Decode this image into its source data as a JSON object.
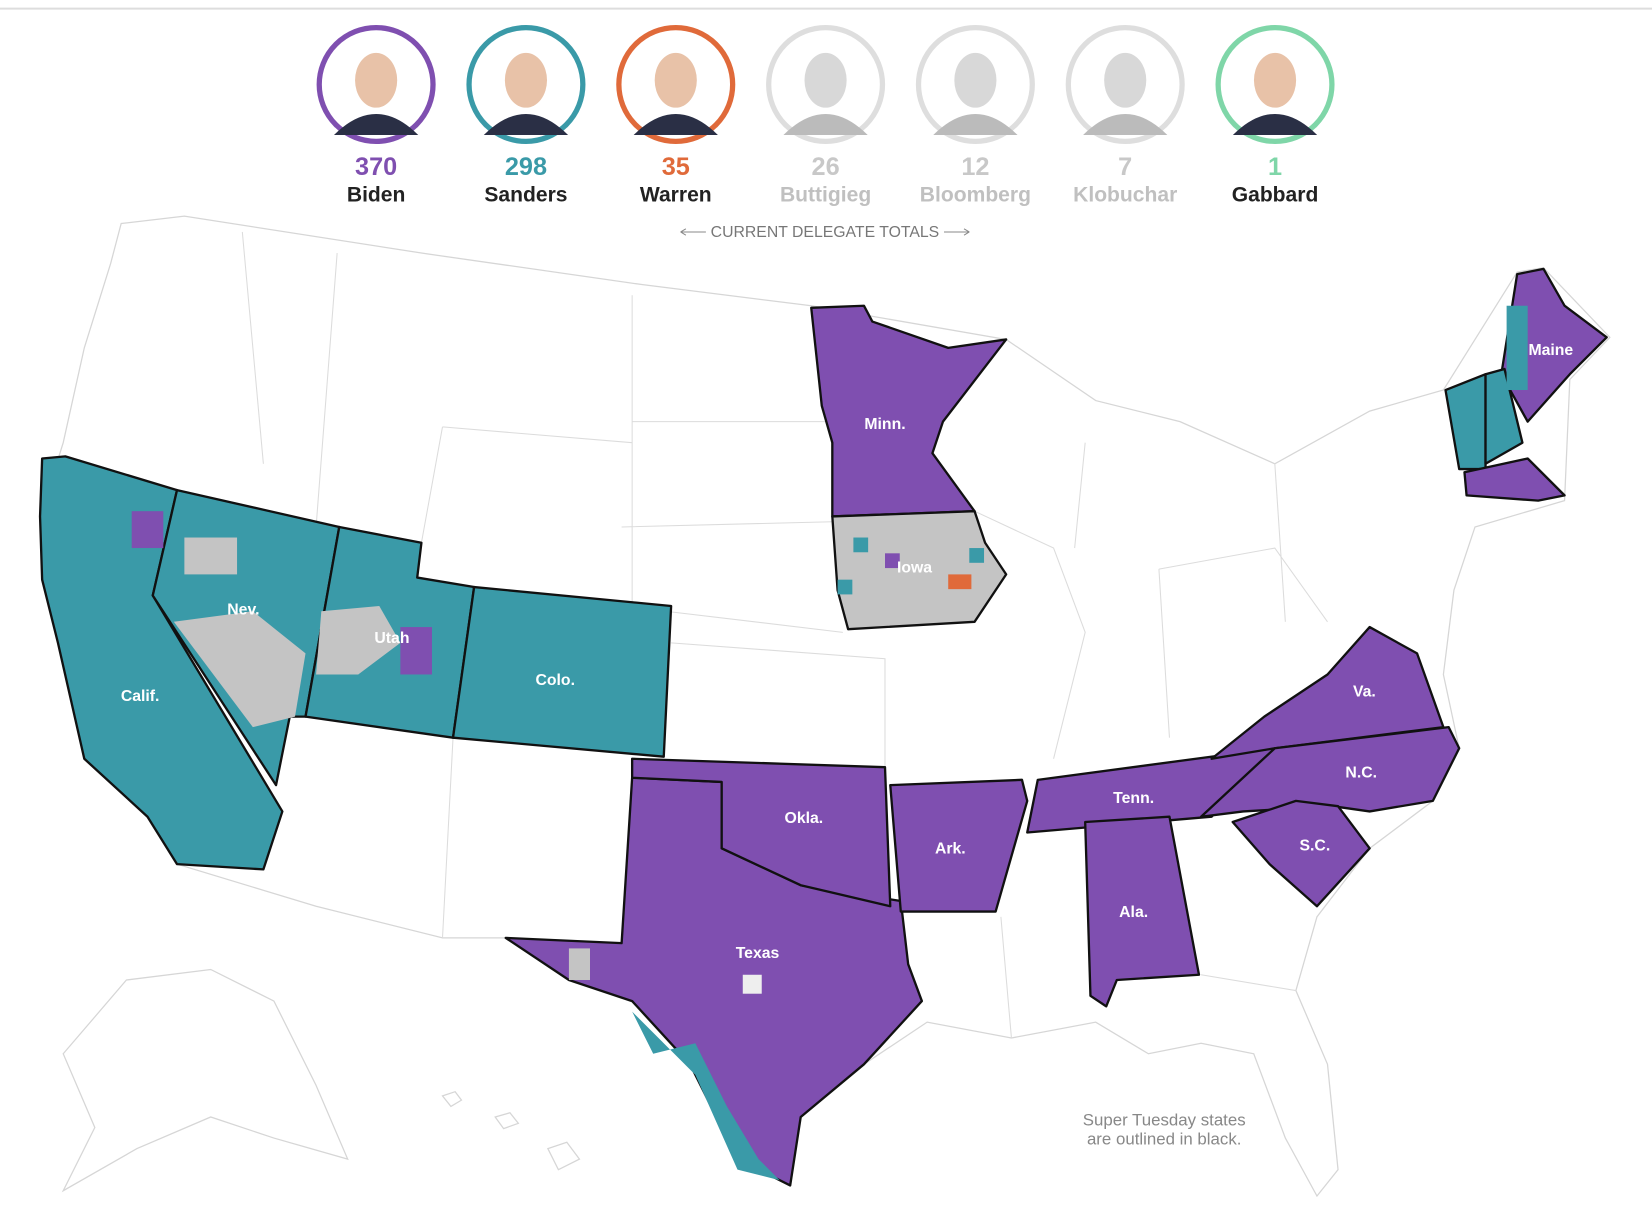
{
  "header": {
    "note": "CURRENT DELEGATE TOTALS"
  },
  "candidates": [
    {
      "name": "Biden",
      "delegates": 370,
      "color": "#7f4fb0",
      "active": true
    },
    {
      "name": "Sanders",
      "delegates": 298,
      "color": "#3a9aa8",
      "active": true
    },
    {
      "name": "Warren",
      "delegates": 35,
      "color": "#e06a3a",
      "active": true
    },
    {
      "name": "Buttigieg",
      "delegates": 26,
      "color": "#c8c8c8",
      "active": false
    },
    {
      "name": "Bloomberg",
      "delegates": 12,
      "color": "#c8c8c8",
      "active": false
    },
    {
      "name": "Klobuchar",
      "delegates": 7,
      "color": "#c8c8c8",
      "active": false
    },
    {
      "name": "Gabbard",
      "delegates": 1,
      "color": "#7fd6a8",
      "active": true
    }
  ],
  "states": [
    {
      "label": "Calif.",
      "color": "#3a9aa8"
    },
    {
      "label": "Nev.",
      "color": "#3a9aa8"
    },
    {
      "label": "Utah",
      "color": "#3a9aa8"
    },
    {
      "label": "Colo.",
      "color": "#3a9aa8"
    },
    {
      "label": "Minn.",
      "color": "#7f4fb0"
    },
    {
      "label": "Iowa",
      "color": "#c4c4c4"
    },
    {
      "label": "Maine",
      "color": "#7f4fb0"
    },
    {
      "label": "Texas",
      "color": "#7f4fb0"
    },
    {
      "label": "Okla.",
      "color": "#7f4fb0"
    },
    {
      "label": "Ark.",
      "color": "#7f4fb0"
    },
    {
      "label": "Tenn.",
      "color": "#7f4fb0"
    },
    {
      "label": "Ala.",
      "color": "#7f4fb0"
    },
    {
      "label": "Va.",
      "color": "#7f4fb0"
    },
    {
      "label": "N.C.",
      "color": "#7f4fb0"
    },
    {
      "label": "S.C.",
      "color": "#7f4fb0"
    }
  ],
  "footnote": [
    "Super Tuesday states",
    "are outlined in black."
  ]
}
